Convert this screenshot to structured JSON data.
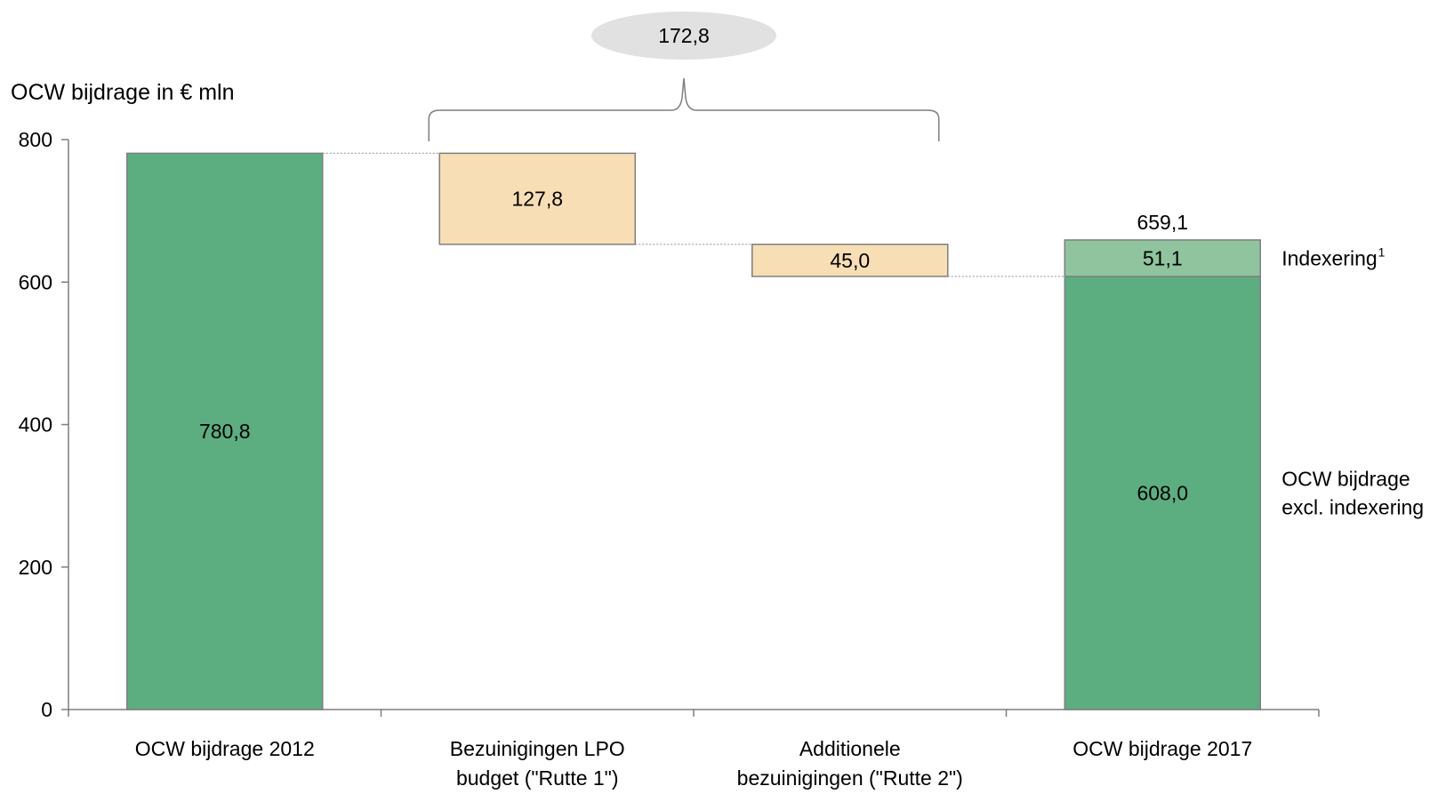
{
  "chart_data": {
    "type": "bar",
    "subtype": "waterfall",
    "ylabel": "OCW bijdrage in € mln",
    "ylim": [
      0,
      800
    ],
    "yticks": [
      0,
      200,
      400,
      600,
      800
    ],
    "categories": [
      [
        "OCW bijdrage 2012"
      ],
      [
        "Bezuinigingen LPO",
        "budget (\"Rutte 1\")"
      ],
      [
        "Additionele",
        "bezuinigingen (\"Rutte 2\")"
      ],
      [
        "OCW bijdrage 2017"
      ]
    ],
    "bars": [
      {
        "kind": "total",
        "base": 0,
        "value": 780.8,
        "label": "780,8",
        "color": "#5cad80"
      },
      {
        "kind": "decrease",
        "base": 653.0,
        "value": 127.8,
        "label": "127,8",
        "color": "#f7deb4"
      },
      {
        "kind": "decrease",
        "base": 608.0,
        "value": 45.0,
        "label": "45,0",
        "color": "#f7deb4"
      },
      {
        "kind": "stack",
        "segments": [
          {
            "name": "OCW bijdrage excl. indexering",
            "base": 0,
            "value": 608.0,
            "label": "608,0",
            "color": "#5cad80"
          },
          {
            "name": "Indexering",
            "base": 608.0,
            "value": 51.1,
            "label": "51,1",
            "color": "#8fc49e"
          }
        ],
        "total": 659.1,
        "total_label": "659,1"
      }
    ],
    "connectors": [
      780.8,
      653.0,
      608.0
    ],
    "bracket": {
      "from_bar": 1,
      "to_bar": 2,
      "label": "172,8",
      "bubble_color": "#e1e1e1"
    },
    "series_labels": [
      {
        "lines": [
          "Indexering"
        ],
        "sup": "1",
        "at_value": 633.5
      },
      {
        "lines": [
          "OCW bijdrage",
          "excl. indexering"
        ],
        "sup": "",
        "at_value": 304.0
      }
    ],
    "grid": false,
    "axis_color": "#7f7f7f",
    "edge_color": "#7f7f7f",
    "connector_color": "#a6a6a6"
  }
}
